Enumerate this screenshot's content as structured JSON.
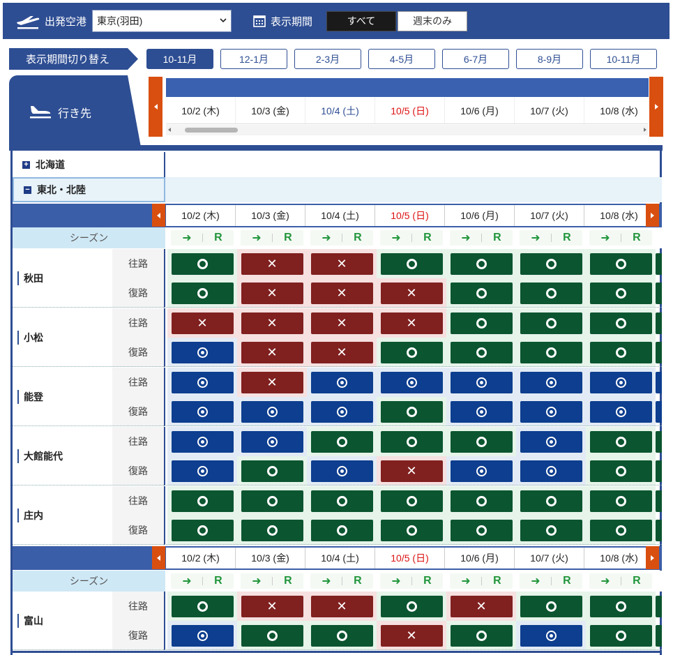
{
  "topbar": {
    "departure_label": "出発空港",
    "departure_value": "東京(羽田)",
    "period_label": "表示期間",
    "all_label": "すべて",
    "weekend_label": "週末のみ"
  },
  "period_switch": {
    "label": "表示期間切り替え",
    "tabs": [
      "10-11月",
      "12-1月",
      "2-3月",
      "4-5月",
      "6-7月",
      "8-9月",
      "10-11月"
    ]
  },
  "destination_label": "行き先",
  "dates": [
    {
      "label": "10/2 (木)",
      "kind": "wd"
    },
    {
      "label": "10/3 (金)",
      "kind": "wd"
    },
    {
      "label": "10/4 (土)",
      "kind": "sat"
    },
    {
      "label": "10/5 (日)",
      "kind": "sun"
    },
    {
      "label": "10/6 (月)",
      "kind": "wd"
    },
    {
      "label": "10/7 (火)",
      "kind": "wd"
    },
    {
      "label": "10/8 (水)",
      "kind": "wd"
    }
  ],
  "regions": {
    "hokkaido": "北海道",
    "tohoku": "東北・北陸"
  },
  "season_label": "シーズン",
  "season_arrow": "➜",
  "season_r": "R",
  "dir_outbound": "往路",
  "dir_return": "復路",
  "status_symbols": {
    "o": "",
    "x": "✕",
    "d": ""
  },
  "group1_cities": [
    {
      "name": "秋田",
      "out": [
        "o",
        "x",
        "x",
        "o",
        "o",
        "o",
        "o"
      ],
      "ret": [
        "o",
        "x",
        "x",
        "x",
        "o",
        "o",
        "o"
      ]
    },
    {
      "name": "小松",
      "out": [
        "x",
        "x",
        "x",
        "x",
        "o",
        "o",
        "o"
      ],
      "ret": [
        "d",
        "x",
        "x",
        "o",
        "o",
        "o",
        "o"
      ]
    },
    {
      "name": "能登",
      "out": [
        "d",
        "x",
        "d",
        "d",
        "d",
        "d",
        "d"
      ],
      "ret": [
        "d",
        "d",
        "d",
        "o",
        "d",
        "d",
        "d"
      ]
    },
    {
      "name": "大館能代",
      "out": [
        "d",
        "d",
        "o",
        "o",
        "o",
        "d",
        "o"
      ],
      "ret": [
        "d",
        "o",
        "d",
        "x",
        "d",
        "d",
        "o"
      ]
    },
    {
      "name": "庄内",
      "out": [
        "o",
        "o",
        "o",
        "o",
        "o",
        "o",
        "o"
      ],
      "ret": [
        "o",
        "o",
        "o",
        "o",
        "o",
        "o",
        "o"
      ]
    }
  ],
  "group2_cities": [
    {
      "name": "富山",
      "out": [
        "o",
        "x",
        "x",
        "o",
        "x",
        "o",
        "o"
      ],
      "ret": [
        "d",
        "o",
        "o",
        "x",
        "o",
        "d",
        "o"
      ]
    }
  ]
}
